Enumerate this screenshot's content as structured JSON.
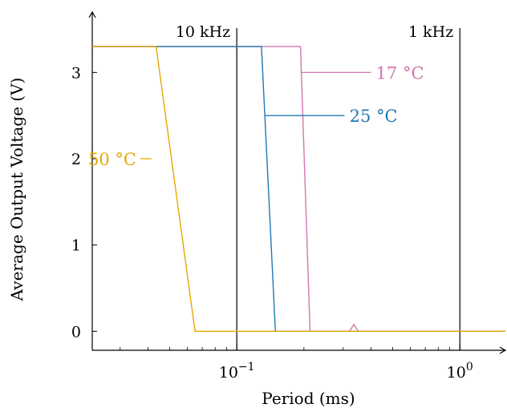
{
  "chart_data": {
    "type": "line",
    "xlabel": "Period (ms)",
    "ylabel": "Average Output Voltage (V)",
    "x_scale": "log",
    "xlim": [
      0.0225,
      1.6
    ],
    "ylim": [
      -0.22,
      3.7
    ],
    "y_ticks": [
      0,
      1,
      2,
      3
    ],
    "y_tick_labels": [
      "0",
      "1",
      "2",
      "3"
    ],
    "x_ticks": [
      0.1,
      1
    ],
    "x_tick_labels": [
      {
        "base": "10",
        "exp": "−1"
      },
      {
        "base": "10",
        "exp": "0"
      }
    ],
    "vertical_markers": [
      {
        "x": 0.1,
        "label": "10 kHz"
      },
      {
        "x": 1,
        "label": "1 kHz"
      }
    ],
    "series": [
      {
        "name": "50 °C",
        "color": "#e6a800",
        "x": [
          0.0225,
          0.0435,
          0.065,
          1.6
        ],
        "y": [
          3.3,
          3.3,
          0.0,
          0.0
        ],
        "label_at": {
          "x": 0.0415,
          "y": 2.0
        }
      },
      {
        "name": "25 °C",
        "color": "#1f78b4",
        "x": [
          0.0225,
          0.129,
          0.149,
          1.6
        ],
        "y": [
          3.3,
          3.3,
          0.0,
          0.0
        ],
        "label_at": {
          "x": 0.133,
          "y": 2.5
        }
      },
      {
        "name": "17 °C",
        "color": "#d277ad",
        "x": [
          0.0225,
          0.193,
          0.213,
          0.32,
          0.335,
          0.35,
          1.6
        ],
        "y": [
          3.3,
          3.3,
          0.0,
          0.0,
          0.08,
          0.0,
          0.0
        ],
        "label_at": {
          "x": 0.193,
          "y": 3.0
        }
      }
    ]
  }
}
